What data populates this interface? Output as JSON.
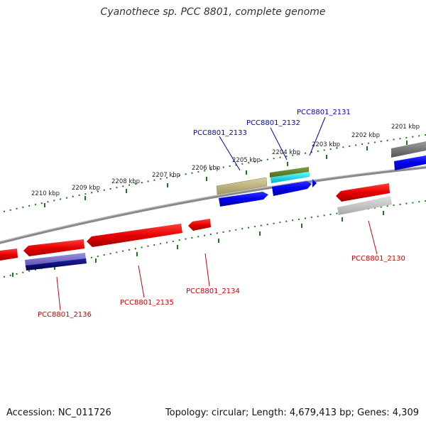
{
  "title": "Cyanothece sp. PCC 8801, complete genome",
  "footer": {
    "accession": "Accession: NC_011726",
    "summary": "Topology: circular; Length: 4,679,413 bp; Genes: 4,309"
  },
  "ticks": [
    "2201 kbp",
    "2202 kbp",
    "2203 kbp",
    "2204 kbp",
    "2205 kbp",
    "2206 kbp",
    "2207 kbp",
    "2208 kbp",
    "2209 kbp",
    "2210 kbp"
  ],
  "gene_labels": {
    "forward": [
      "PCC8801_2131",
      "PCC8801_2132",
      "PCC8801_2133"
    ],
    "reverse": [
      "PCC8801_2130",
      "PCC8801_2134",
      "PCC8801_2135",
      "PCC8801_2136"
    ]
  },
  "colors": {
    "forward_label": "#0000cc",
    "reverse_label": "#cc0000",
    "tick": "#1a7a1a",
    "backbone": "#888888"
  }
}
